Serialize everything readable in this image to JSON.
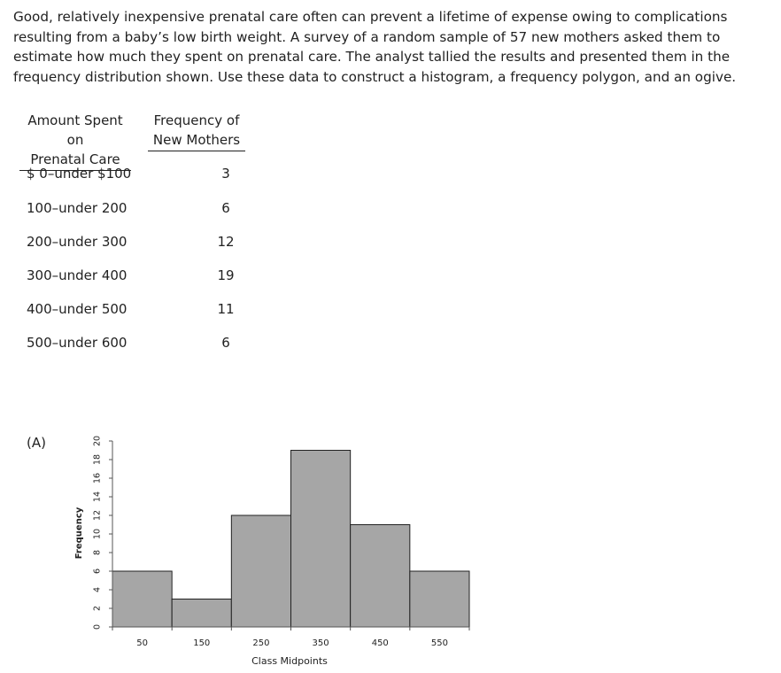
{
  "problem_text": "Good, relatively inexpensive prenatal care often can prevent a lifetime of expense owing to complications resulting from a baby’s low birth weight. A survey of a random sample of 57 new mothers asked them to estimate how much they spent on prenatal care. The analyst tallied the results and presented them in the frequency distribution shown. Use these data to construct a histogram, a frequency polygon, and an ogive.",
  "table": {
    "col1_header": [
      "Amount Spent on",
      "Prenatal Care"
    ],
    "col2_header": [
      "Frequency of",
      "New Mothers"
    ],
    "rows": [
      {
        "range": "$ 0–under $100",
        "freq": "3"
      },
      {
        "range": "100–under 200",
        "freq": "6"
      },
      {
        "range": "200–under 300",
        "freq": "12"
      },
      {
        "range": "300–under 400",
        "freq": "19"
      },
      {
        "range": "400–under 500",
        "freq": "11"
      },
      {
        "range": "500–under 600",
        "freq": "6"
      }
    ]
  },
  "option_label": "(A)",
  "chart_data": {
    "type": "bar",
    "categories": [
      "50",
      "150",
      "250",
      "350",
      "450",
      "550"
    ],
    "values": [
      6,
      3,
      12,
      19,
      11,
      6
    ],
    "xlabel": "Class Midpoints",
    "ylabel": "Frequency",
    "ylim": [
      0,
      20
    ],
    "yticks": [
      "0",
      "2",
      "4",
      "6",
      "8",
      "10",
      "12",
      "14",
      "16",
      "18",
      "20"
    ],
    "bar_color": "#a6a6a6",
    "bar_edge_color": "#222222",
    "grid": false
  }
}
